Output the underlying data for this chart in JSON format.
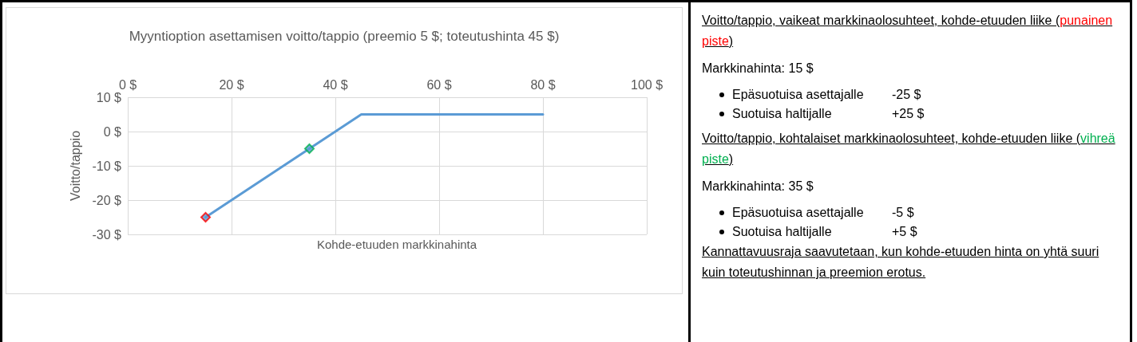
{
  "chart_data": [
    {
      "type": "line",
      "title": "Myyntioption asettamisen voitto/tappio (preemio 5 $; toteutushinta 45 $)",
      "xlabel": "Kohde-etuuden markkinahinta",
      "ylabel": "Voitto/tappio",
      "xlim": [
        0,
        100
      ],
      "xticks": [
        {
          "value": 0,
          "label": "0 $"
        },
        {
          "value": 20,
          "label": "20 $"
        },
        {
          "value": 40,
          "label": "40 $"
        },
        {
          "value": 60,
          "label": "60 $"
        },
        {
          "value": 80,
          "label": "80 $"
        },
        {
          "value": 100,
          "label": "100 $"
        }
      ],
      "ylim": [
        -30,
        10
      ],
      "yticks": [
        {
          "value": -30,
          "label": "-30 $"
        },
        {
          "value": -20,
          "label": "-20 $"
        },
        {
          "value": -10,
          "label": "-10 $"
        },
        {
          "value": 0,
          "label": "0 $"
        },
        {
          "value": 10,
          "label": "10 $"
        }
      ],
      "grid": true,
      "series": [
        {
          "type": "line",
          "color": "#5b9bd5",
          "x": [
            15,
            45,
            80
          ],
          "values": [
            -25,
            5,
            5
          ],
          "marker": "none"
        },
        {
          "type": "scatter",
          "color": "#ff0000",
          "x": [
            15
          ],
          "values": [
            -25
          ],
          "marker": "diamond"
        },
        {
          "type": "scatter",
          "color": "#00b050",
          "x": [
            35
          ],
          "values": [
            -5
          ],
          "marker": "diamond"
        }
      ]
    },
    {
      "type": "other",
      "annotations": [
        "Voitto/tappio, vaikeat markkinaolosuhteet, kohde-etuuden liike (punainen piste)",
        "Markkinahinta: 15 $",
        "Epäsuotuisa asettajalle\t-25 $",
        "Suotuisa haltijalle\t+25 $",
        "Voitto/tappio, kohtalaiset markkinaolosuhteet, kohde-etuuden liike (vihreä piste)",
        "Markkinahinta: 35 $",
        "Epäsuotuisa asettajalle\t-5 $",
        "Suotuisa haltijalle\t+5 $",
        "Kannattavuusraja saavutetaan, kun kohde-etuuden hinta on yhtä suuri kuin toteutushinnan ja preemion erotus."
      ]
    }
  ]
}
